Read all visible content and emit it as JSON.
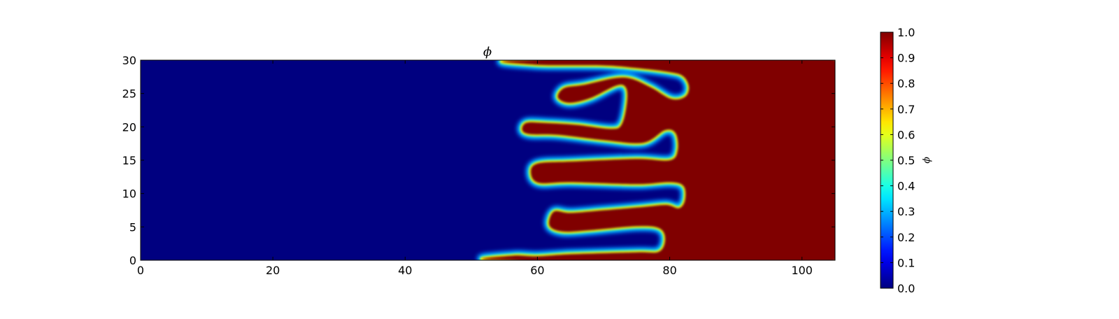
{
  "chart_data": {
    "type": "heatmap",
    "title": "ϕ",
    "xlabel": "",
    "ylabel": "",
    "xlim": [
      0,
      105
    ],
    "ylim": [
      0,
      30
    ],
    "x_ticks": [
      0,
      20,
      40,
      60,
      80,
      100
    ],
    "y_ticks": [
      0,
      5,
      10,
      15,
      20,
      25,
      30
    ],
    "colormap": "jet",
    "value_range": [
      0.0,
      1.0
    ],
    "background_value": 0.0,
    "fill_value": 1.0,
    "interface_width": 0.6,
    "colorbar": {
      "label": "ϕ",
      "ticks": [
        "0.0",
        "0.1",
        "0.2",
        "0.3",
        "0.4",
        "0.5",
        "0.6",
        "0.7",
        "0.8",
        "0.9",
        "1.0"
      ]
    },
    "red_region_boundary": {
      "description": "closed contour (x, y in data units) of the phi=1 region; interior is 1, exterior is 0",
      "points": [
        [
          105,
          0
        ],
        [
          105,
          30
        ],
        [
          57.8,
          30
        ],
        [
          60,
          29.3
        ],
        [
          70,
          29.2
        ],
        [
          75,
          28.8
        ],
        [
          80,
          28.2
        ],
        [
          82,
          27.6
        ],
        [
          82.9,
          26.0
        ],
        [
          82.3,
          24.5
        ],
        [
          80.2,
          24.2
        ],
        [
          77,
          26
        ],
        [
          73,
          27.4
        ],
        [
          67,
          26.3
        ],
        [
          64,
          25.8
        ],
        [
          63.1,
          24.4
        ],
        [
          64.8,
          23.6
        ],
        [
          68,
          24.3
        ],
        [
          72,
          26.2
        ],
        [
          73.4,
          25.8
        ],
        [
          73.5,
          23.5
        ],
        [
          72.7,
          20.3
        ],
        [
          71,
          19.7
        ],
        [
          66,
          20.3
        ],
        [
          61,
          20.6
        ],
        [
          58.3,
          20.6
        ],
        [
          57.7,
          19.5
        ],
        [
          58.9,
          18.9
        ],
        [
          63,
          18.8
        ],
        [
          70,
          18.0
        ],
        [
          76,
          17.6
        ],
        [
          79.3,
          19.5
        ],
        [
          80.9,
          19.0
        ],
        [
          81.2,
          16.5
        ],
        [
          80,
          15.0
        ],
        [
          75,
          15.2
        ],
        [
          65,
          14.8
        ],
        [
          60,
          14.5
        ],
        [
          59.0,
          13.1
        ],
        [
          60.2,
          11.6
        ],
        [
          65,
          11.7
        ],
        [
          75,
          11.4
        ],
        [
          80,
          11.7
        ],
        [
          82.1,
          11.1
        ],
        [
          82.3,
          9.0
        ],
        [
          81.4,
          7.8
        ],
        [
          79.5,
          8.3
        ],
        [
          76,
          8.0
        ],
        [
          70,
          7.5
        ],
        [
          65,
          7.1
        ],
        [
          62.5,
          7.3
        ],
        [
          61.8,
          5.2
        ],
        [
          63.8,
          4.3
        ],
        [
          68,
          4.5
        ],
        [
          75,
          5.1
        ],
        [
          78.4,
          4.8
        ],
        [
          79.3,
          3.2
        ],
        [
          78.4,
          1.3
        ],
        [
          75,
          1.2
        ],
        [
          65,
          0.9
        ],
        [
          60,
          0.6
        ],
        [
          56.5,
          0.7
        ],
        [
          55,
          0
        ]
      ]
    }
  }
}
